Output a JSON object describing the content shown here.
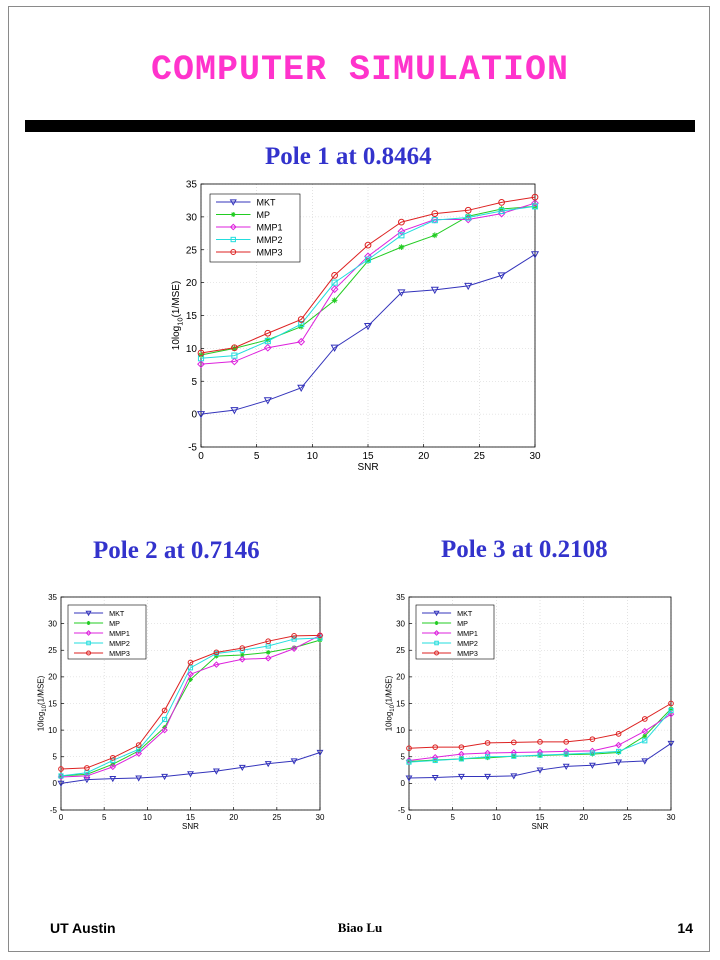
{
  "slide": {
    "title": "COMPUTER SIMULATION",
    "footer_left": "UT Austin",
    "footer_center": "Biao Lu",
    "page_number": "14"
  },
  "colors": {
    "title": "#ff33cc",
    "chart_titles": "#3333cc",
    "MKT": "#3333bb",
    "MP": "#22cc22",
    "MMP1": "#dd22dd",
    "MMP2": "#22dddd",
    "MMP3": "#dd2222"
  },
  "chart_data": [
    {
      "type": "line",
      "title": "Pole 1 at 0.8464",
      "xlabel": "SNR",
      "ylabel": "10log10(1/MSE)",
      "ylabel_main": "10log",
      "ylabel_sub": "10",
      "ylabel_tail": "(1/MSE)",
      "xlim": [
        0,
        30
      ],
      "ylim": [
        -5,
        35
      ],
      "xticks": [
        0,
        5,
        10,
        15,
        20,
        25,
        30
      ],
      "yticks": [
        -5,
        0,
        5,
        10,
        15,
        20,
        25,
        30,
        35
      ],
      "grid": true,
      "legend": "top-left",
      "x": [
        0,
        3,
        6,
        9,
        12,
        15,
        18,
        21,
        24,
        27,
        30
      ],
      "series": [
        {
          "name": "MKT",
          "color": "#3333bb",
          "marker": "triangle-down",
          "values": [
            0,
            0.6,
            2.1,
            4.0,
            10.1,
            13.4,
            18.5,
            18.9,
            19.5,
            21.1,
            24.3
          ]
        },
        {
          "name": "MP",
          "color": "#22cc22",
          "marker": "star",
          "values": [
            9.0,
            10.0,
            11.3,
            13.3,
            17.3,
            23.3,
            25.4,
            27.2,
            30.1,
            31.2,
            31.6
          ]
        },
        {
          "name": "MMP1",
          "color": "#dd22dd",
          "marker": "diamond",
          "values": [
            7.6,
            8.0,
            10.1,
            11.0,
            19.0,
            24.0,
            27.8,
            29.6,
            29.6,
            30.5,
            32.1
          ]
        },
        {
          "name": "MMP2",
          "color": "#22dddd",
          "marker": "square",
          "values": [
            8.5,
            8.9,
            11.1,
            13.7,
            20.0,
            23.5,
            27.2,
            29.5,
            29.9,
            30.9,
            31.6
          ]
        },
        {
          "name": "MMP3",
          "color": "#dd2222",
          "marker": "circle",
          "values": [
            9.3,
            10.1,
            12.3,
            14.4,
            21.1,
            25.7,
            29.2,
            30.5,
            31.0,
            32.2,
            33.0
          ]
        }
      ]
    },
    {
      "type": "line",
      "title": "Pole 2 at 0.7146",
      "xlabel": "SNR",
      "ylabel": "10log10(1/MSE)",
      "ylabel_main": "10log",
      "ylabel_sub": "10",
      "ylabel_tail": "(1/MSE)",
      "xlim": [
        0,
        30
      ],
      "ylim": [
        -5,
        35
      ],
      "xticks": [
        0,
        5,
        10,
        15,
        20,
        25,
        30
      ],
      "yticks": [
        -5,
        0,
        5,
        10,
        15,
        20,
        25,
        30,
        35
      ],
      "grid": true,
      "legend": "top-left",
      "x": [
        0,
        3,
        6,
        9,
        12,
        15,
        18,
        21,
        24,
        27,
        30
      ],
      "series": [
        {
          "name": "MKT",
          "color": "#3333bb",
          "marker": "triangle-down",
          "values": [
            0,
            0.7,
            0.9,
            1.0,
            1.3,
            1.8,
            2.3,
            3.0,
            3.7,
            4.2,
            5.8
          ]
        },
        {
          "name": "MP",
          "color": "#22cc22",
          "marker": "star",
          "values": [
            1.4,
            1.7,
            3.6,
            6.1,
            10.5,
            19.5,
            23.9,
            24.1,
            24.6,
            25.5,
            26.9
          ]
        },
        {
          "name": "MMP1",
          "color": "#dd22dd",
          "marker": "diamond",
          "values": [
            1.2,
            1.4,
            3.1,
            5.6,
            10.0,
            20.5,
            22.3,
            23.3,
            23.5,
            25.3,
            27.8
          ]
        },
        {
          "name": "MMP2",
          "color": "#22dddd",
          "marker": "square",
          "values": [
            1.4,
            2.0,
            4.3,
            6.4,
            12.0,
            21.7,
            24.4,
            25.0,
            25.8,
            27.1,
            27.3
          ]
        },
        {
          "name": "MMP3",
          "color": "#dd2222",
          "marker": "circle",
          "values": [
            2.7,
            2.9,
            4.8,
            7.2,
            13.7,
            22.7,
            24.6,
            25.4,
            26.7,
            27.7,
            27.8
          ]
        }
      ]
    },
    {
      "type": "line",
      "title": "Pole 3 at 0.2108",
      "xlabel": "SNR",
      "ylabel": "10log10(1/MSE)",
      "ylabel_main": "10log",
      "ylabel_sub": "10",
      "ylabel_tail": "(1/MSE)",
      "xlim": [
        0,
        30
      ],
      "ylim": [
        -5,
        35
      ],
      "xticks": [
        0,
        5,
        10,
        15,
        20,
        25,
        30
      ],
      "yticks": [
        -5,
        0,
        5,
        10,
        15,
        20,
        25,
        30,
        35
      ],
      "grid": true,
      "legend": "top-left",
      "x": [
        0,
        3,
        6,
        9,
        12,
        15,
        18,
        21,
        24,
        27,
        30
      ],
      "series": [
        {
          "name": "MKT",
          "color": "#3333bb",
          "marker": "triangle-down",
          "values": [
            1.0,
            1.1,
            1.3,
            1.3,
            1.4,
            2.5,
            3.2,
            3.4,
            4.0,
            4.2,
            7.5
          ]
        },
        {
          "name": "MP",
          "color": "#22cc22",
          "marker": "star",
          "values": [
            4.1,
            4.4,
            4.6,
            4.8,
            5.1,
            5.2,
            5.4,
            5.5,
            5.8,
            8.9,
            14.0
          ]
        },
        {
          "name": "MMP1",
          "color": "#dd22dd",
          "marker": "diamond",
          "values": [
            4.3,
            4.9,
            5.5,
            5.7,
            5.8,
            5.9,
            6.0,
            6.1,
            7.2,
            9.8,
            13.0
          ]
        },
        {
          "name": "MMP2",
          "color": "#22dddd",
          "marker": "square",
          "values": [
            4.0,
            4.3,
            4.6,
            5.0,
            5.1,
            5.3,
            5.5,
            5.7,
            6.0,
            8.0,
            13.7
          ]
        },
        {
          "name": "MMP3",
          "color": "#dd2222",
          "marker": "circle",
          "values": [
            6.6,
            6.8,
            6.8,
            7.6,
            7.7,
            7.8,
            7.8,
            8.3,
            9.3,
            12.1,
            15.0
          ]
        }
      ]
    }
  ]
}
